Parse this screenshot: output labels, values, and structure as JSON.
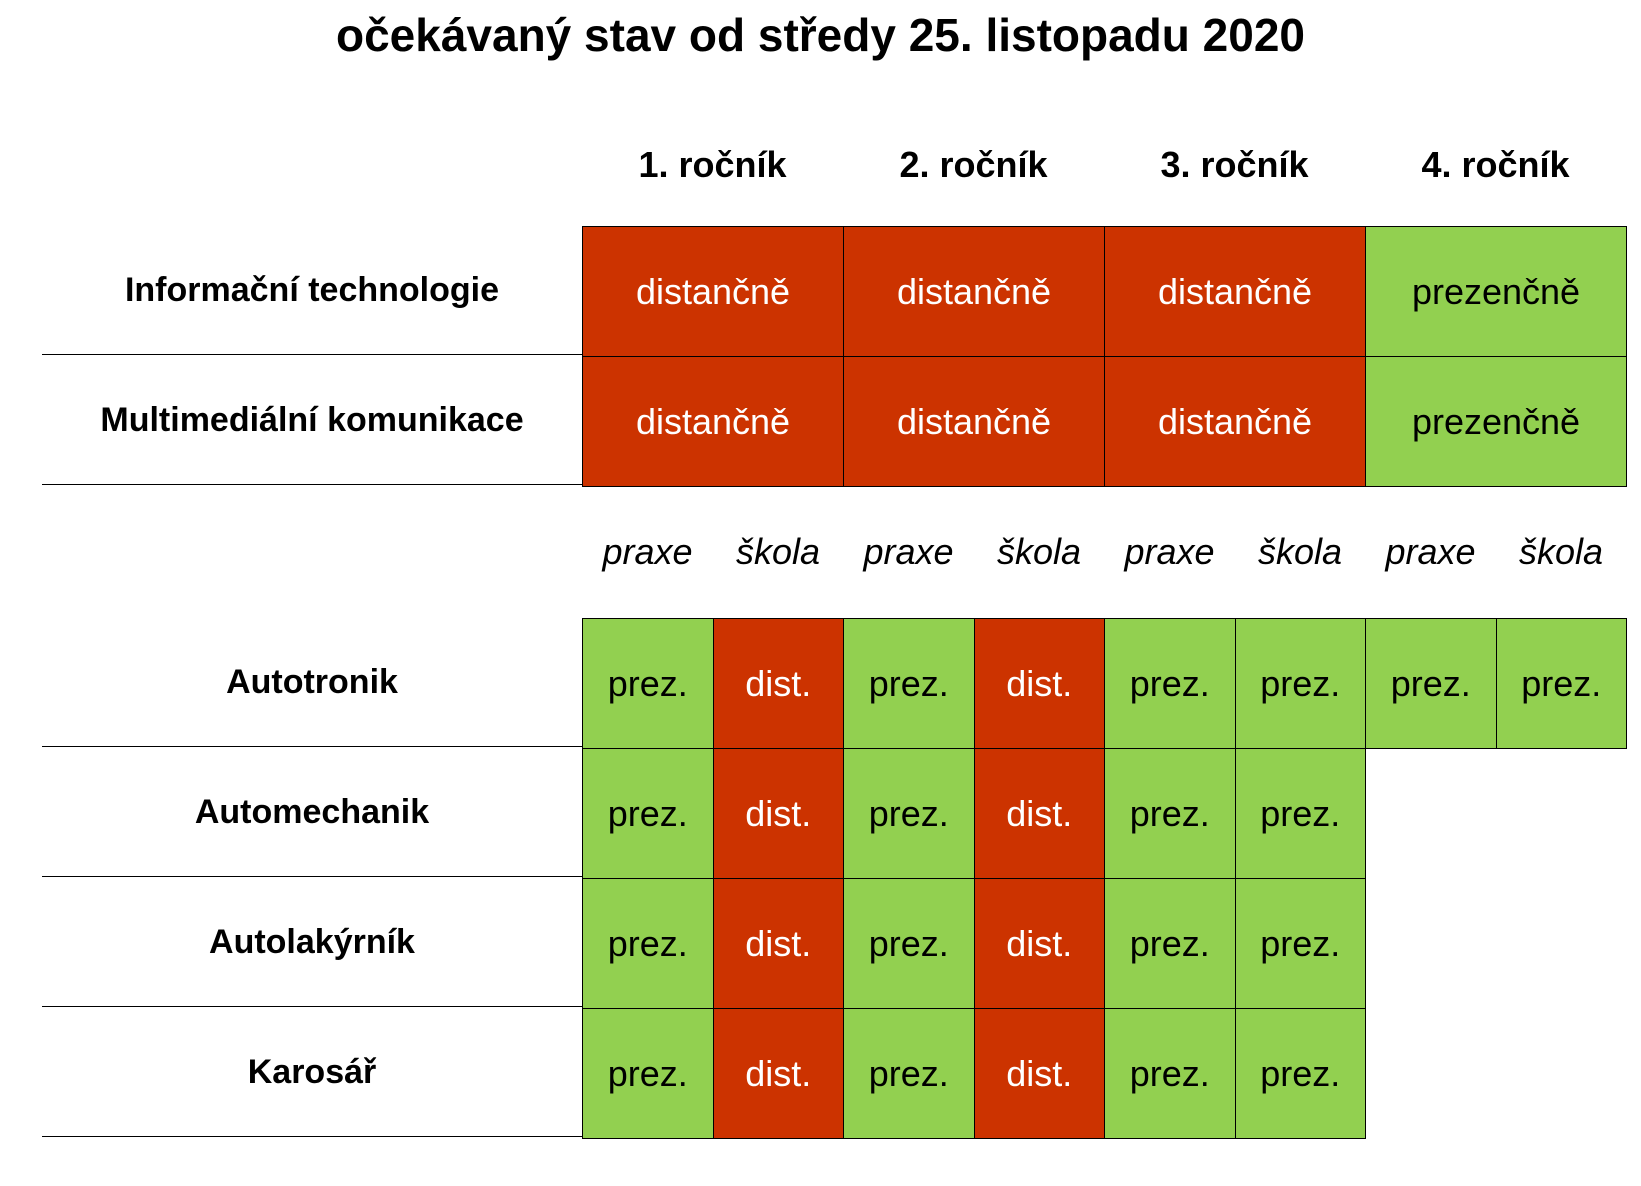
{
  "title": "očekávaný stav od středy 25. listopadu 2020",
  "years": [
    "1. ročník",
    "2. ročník",
    "3. ročník",
    "4. ročník"
  ],
  "colors": {
    "distance": "#cc3300",
    "presence": "#92d050"
  },
  "upper_table": {
    "rows": [
      {
        "label": "Informační technologie",
        "cells": [
          "distančně",
          "distančně",
          "distančně",
          "prezenčně"
        ],
        "modes": [
          "dist",
          "dist",
          "dist",
          "prez"
        ]
      },
      {
        "label": "Multimediální komunikace",
        "cells": [
          "distančně",
          "distančně",
          "distančně",
          "prezenčně"
        ],
        "modes": [
          "dist",
          "dist",
          "dist",
          "prez"
        ]
      }
    ]
  },
  "lower_table": {
    "subheaders": [
      "praxe",
      "škola",
      "praxe",
      "škola",
      "praxe",
      "škola",
      "praxe",
      "škola"
    ],
    "rows": [
      {
        "label": "Autotronik",
        "cells": [
          "prez.",
          "dist.",
          "prez.",
          "dist.",
          "prez.",
          "prez.",
          "prez.",
          "prez."
        ]
      },
      {
        "label": "Automechanik",
        "cells": [
          "prez.",
          "dist.",
          "prez.",
          "dist.",
          "prez.",
          "prez."
        ]
      },
      {
        "label": "Autolakýrník",
        "cells": [
          "prez.",
          "dist.",
          "prez.",
          "dist.",
          "prez.",
          "prez."
        ]
      },
      {
        "label": "Karosář",
        "cells": [
          "prez.",
          "dist.",
          "prez.",
          "dist.",
          "prez.",
          "prez."
        ]
      }
    ]
  }
}
